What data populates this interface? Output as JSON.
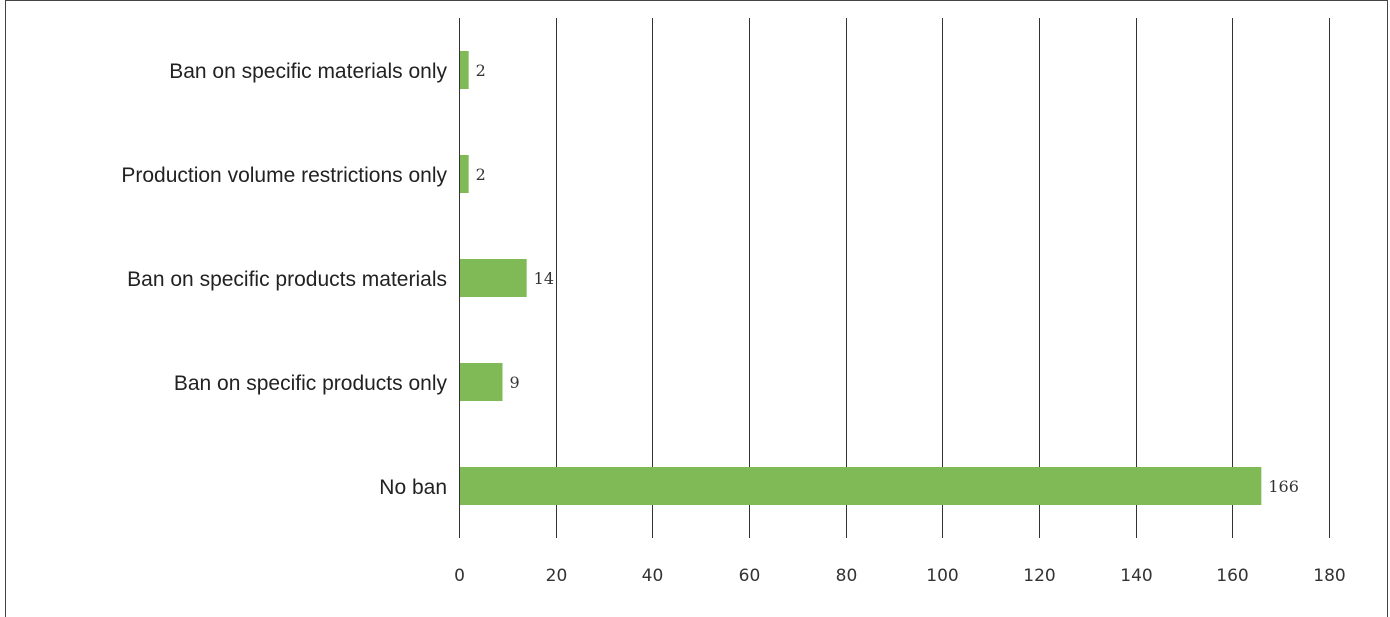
{
  "chart_data": {
    "type": "bar",
    "orientation": "horizontal",
    "title": "",
    "xlabel": "",
    "ylabel": "",
    "categories": [
      "Ban on specific materials only",
      "Production volume restrictions only",
      "Ban on specific products materials",
      "Ban on specific products only",
      "No ban"
    ],
    "values": [
      2,
      2,
      14,
      9,
      166
    ],
    "xlim": [
      0,
      180
    ],
    "xticks": [
      0,
      20,
      40,
      60,
      80,
      100,
      120,
      140,
      160,
      180
    ],
    "grid": "vertical",
    "legend": "none",
    "bar_color": "#7fba57"
  }
}
